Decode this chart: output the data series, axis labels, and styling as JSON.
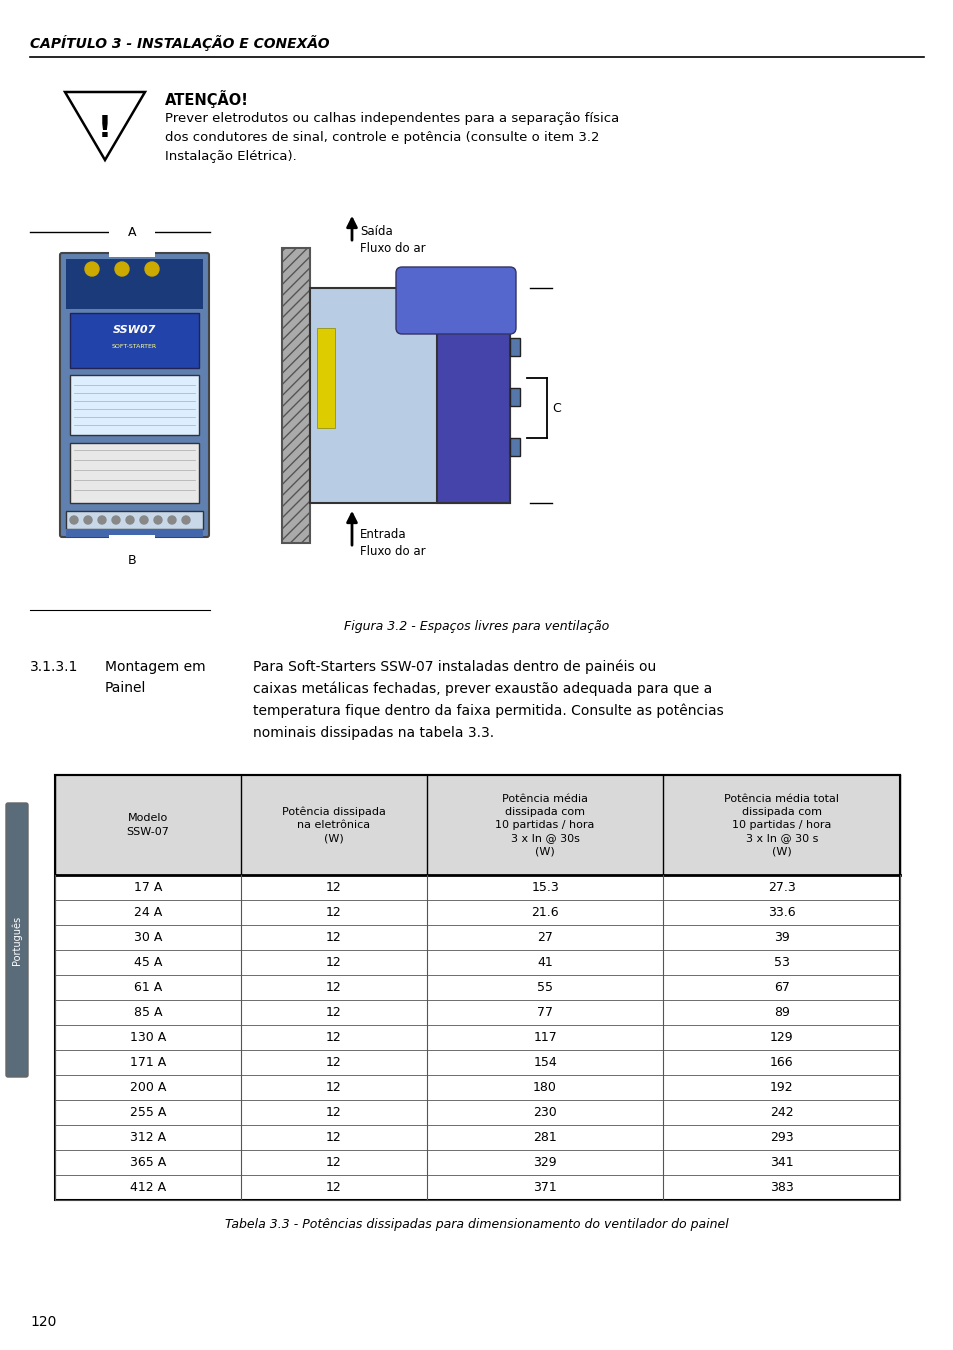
{
  "page_title": "CAPÍTULO 3 - INSTALAÇÃO E CONEXÃO",
  "warning_title": "ATENÇÃO!",
  "warning_text": "Prever eletrodutos ou calhas independentes para a separação física\ndos condutores de sinal, controle e potência (consulte o item 3.2\nInstalação Elétrica).",
  "figure_caption": "Figura 3.2 - Espaços livres para ventilação",
  "section_number": "3.1.3.1",
  "section_title_left": "Montagem em\nPainel",
  "section_text": "Para Soft-Starters SSW-07 instaladas dentro de painéis ou\ncaixas metálicas fechadas, prever exaustão adequada para que a\ntemperatura fique dentro da faixa permitida. Consulte as potências\nnominais dissipadas na tabela 3.3.",
  "table_caption": "Tabela 3.3 - Potências dissipadas para dimensionamento do ventilador do painel",
  "col_headers": [
    "Modelo\nSSW-07",
    "Potência dissipada\nna eletrônica\n(W)",
    "Potência média\ndissipada com\n10 partidas / hora\n3 x In @ 30s\n(W)",
    "Potência média total\ndissipada com\n10 partidas / hora\n3 x In @ 30 s\n(W)"
  ],
  "table_data": [
    [
      "17 A",
      "12",
      "15.3",
      "27.3"
    ],
    [
      "24 A",
      "12",
      "21.6",
      "33.6"
    ],
    [
      "30 A",
      "12",
      "27",
      "39"
    ],
    [
      "45 A",
      "12",
      "41",
      "53"
    ],
    [
      "61 A",
      "12",
      "55",
      "67"
    ],
    [
      "85 A",
      "12",
      "77",
      "89"
    ],
    [
      "130 A",
      "12",
      "117",
      "129"
    ],
    [
      "171 A",
      "12",
      "154",
      "166"
    ],
    [
      "200 A",
      "12",
      "180",
      "192"
    ],
    [
      "255 A",
      "12",
      "230",
      "242"
    ],
    [
      "312 A",
      "12",
      "281",
      "293"
    ],
    [
      "365 A",
      "12",
      "329",
      "341"
    ],
    [
      "412 A",
      "12",
      "371",
      "383"
    ]
  ],
  "page_number": "120",
  "bg_color": "#ffffff",
  "header_bg": "#d9d9d9",
  "table_border": "#000000",
  "side_tab_color": "#5a6b7a",
  "side_tab_text": "Português"
}
